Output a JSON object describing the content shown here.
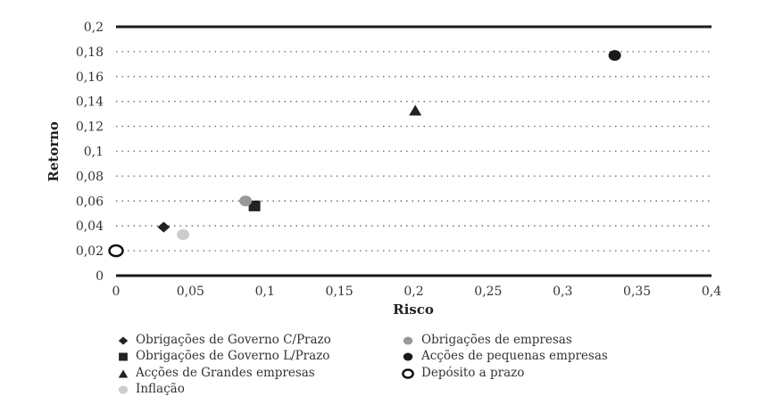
{
  "chart_data": {
    "type": "scatter",
    "xlabel": "Risco",
    "ylabel": "Retorno",
    "xlim": [
      0,
      0.4
    ],
    "ylim": [
      0,
      0.2
    ],
    "x_ticks": [
      "0",
      "0,05",
      "0,1",
      "0,15",
      "0,2",
      "0,25",
      "0,3",
      "0,35",
      "0,4"
    ],
    "y_ticks": [
      "0",
      "0,02",
      "0,04",
      "0,06",
      "0,08",
      "0,1",
      "0,12",
      "0,14",
      "0,16",
      "0,18",
      "0,2"
    ],
    "grid": "horizontal dotted",
    "legend_position": "bottom",
    "series": [
      {
        "name": "Obrigações de Governo C/Prazo",
        "marker": "diamond",
        "color": "#222222",
        "x": 0.032,
        "y": 0.039
      },
      {
        "name": "Obrigações de Governo L/Prazo",
        "marker": "square",
        "color": "#222222",
        "x": 0.093,
        "y": 0.056
      },
      {
        "name": "Acções de Grandes empresas",
        "marker": "triangle",
        "color": "#222222",
        "x": 0.201,
        "y": 0.133
      },
      {
        "name": "Inflação",
        "marker": "circle",
        "color": "#cccccc",
        "x": 0.045,
        "y": 0.033
      },
      {
        "name": "Obrigações de empresas",
        "marker": "circle",
        "color": "#999999",
        "x": 0.087,
        "y": 0.06
      },
      {
        "name": "Acções de pequenas empresas",
        "marker": "circle",
        "color": "#1a1a1a",
        "x": 0.335,
        "y": 0.177
      },
      {
        "name": "Depósito a prazo",
        "marker": "open-circle",
        "color": "#111111",
        "x": 0.0,
        "y": 0.02
      }
    ]
  }
}
